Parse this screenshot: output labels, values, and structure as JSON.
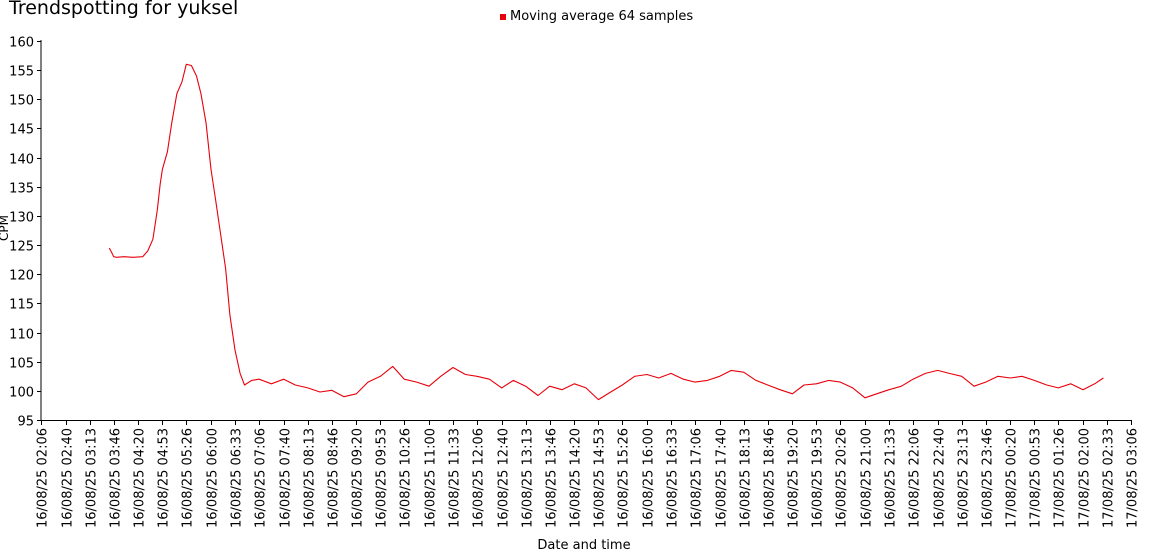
{
  "chart_data": {
    "type": "line",
    "title": "Trendspotting for yuksel",
    "xlabel": "Date and time",
    "ylabel": "CPM",
    "ylim": [
      95,
      160
    ],
    "yticks": [
      95,
      100,
      105,
      110,
      115,
      120,
      125,
      130,
      135,
      140,
      145,
      150,
      155,
      160
    ],
    "x_ticks": [
      "16/08/25 02:06",
      "16/08/25 02:40",
      "16/08/25 03:13",
      "16/08/25 03:46",
      "16/08/25 04:20",
      "16/08/25 04:53",
      "16/08/25 05:26",
      "16/08/25 06:00",
      "16/08/25 06:33",
      "16/08/25 07:06",
      "16/08/25 07:40",
      "16/08/25 08:13",
      "16/08/25 08:46",
      "16/08/25 09:20",
      "16/08/25 09:53",
      "16/08/25 10:26",
      "16/08/25 11:00",
      "16/08/25 11:33",
      "16/08/25 12:06",
      "16/08/25 12:40",
      "16/08/25 13:13",
      "16/08/25 13:46",
      "16/08/25 14:20",
      "16/08/25 14:53",
      "16/08/25 15:26",
      "16/08/25 16:00",
      "16/08/25 16:33",
      "16/08/25 17:06",
      "16/08/25 17:40",
      "16/08/25 18:13",
      "16/08/25 18:46",
      "16/08/25 19:20",
      "16/08/25 19:53",
      "16/08/25 20:26",
      "16/08/25 21:00",
      "16/08/25 21:33",
      "16/08/25 22:06",
      "16/08/25 22:40",
      "16/08/25 23:13",
      "16/08/25 23:46",
      "17/08/25 00:20",
      "17/08/25 00:53",
      "17/08/25 01:26",
      "17/08/25 02:00",
      "17/08/25 02:33",
      "17/08/25 03:06"
    ],
    "grid": false,
    "legend_position": "top",
    "series": [
      {
        "name": "Moving average 64 samples",
        "color": "#e8000b",
        "x": [
          "16/08/25 03:40",
          "16/08/25 03:43",
          "16/08/25 03:46",
          "16/08/25 03:50",
          "16/08/25 04:00",
          "16/08/25 04:13",
          "16/08/25 04:26",
          "16/08/25 04:33",
          "16/08/25 04:40",
          "16/08/25 04:46",
          "16/08/25 04:50",
          "16/08/25 04:53",
          "16/08/25 05:00",
          "16/08/25 05:06",
          "16/08/25 05:13",
          "16/08/25 05:20",
          "16/08/25 05:26",
          "16/08/25 05:33",
          "16/08/25 05:40",
          "16/08/25 05:46",
          "16/08/25 05:53",
          "16/08/25 06:00",
          "16/08/25 06:06",
          "16/08/25 06:13",
          "16/08/25 06:20",
          "16/08/25 06:26",
          "16/08/25 06:33",
          "16/08/25 06:40",
          "16/08/25 06:46",
          "16/08/25 06:56",
          "16/08/25 07:06",
          "16/08/25 07:23",
          "16/08/25 07:40",
          "16/08/25 07:56",
          "16/08/25 08:13",
          "16/08/25 08:30",
          "16/08/25 08:46",
          "16/08/25 09:03",
          "16/08/25 09:20",
          "16/08/25 09:36",
          "16/08/25 09:53",
          "16/08/25 10:10",
          "16/08/25 10:26",
          "16/08/25 10:43",
          "16/08/25 11:00",
          "16/08/25 11:16",
          "16/08/25 11:33",
          "16/08/25 11:50",
          "16/08/25 12:06",
          "16/08/25 12:23",
          "16/08/25 12:40",
          "16/08/25 12:56",
          "16/08/25 13:13",
          "16/08/25 13:30",
          "16/08/25 13:46",
          "16/08/25 14:03",
          "16/08/25 14:20",
          "16/08/25 14:36",
          "16/08/25 14:53",
          "16/08/25 15:10",
          "16/08/25 15:26",
          "16/08/25 15:43",
          "16/08/25 16:00",
          "16/08/25 16:16",
          "16/08/25 16:33",
          "16/08/25 16:50",
          "16/08/25 17:06",
          "16/08/25 17:23",
          "16/08/25 17:40",
          "16/08/25 17:56",
          "16/08/25 18:13",
          "16/08/25 18:30",
          "16/08/25 18:46",
          "16/08/25 19:03",
          "16/08/25 19:20",
          "16/08/25 19:36",
          "16/08/25 19:53",
          "16/08/25 20:10",
          "16/08/25 20:26",
          "16/08/25 20:43",
          "16/08/25 21:00",
          "16/08/25 21:16",
          "16/08/25 21:33",
          "16/08/25 21:50",
          "16/08/25 22:06",
          "16/08/25 22:23",
          "16/08/25 22:40",
          "16/08/25 22:56",
          "16/08/25 23:13",
          "16/08/25 23:30",
          "16/08/25 23:46",
          "17/08/25 00:03",
          "17/08/25 00:20",
          "17/08/25 00:36",
          "17/08/25 00:53",
          "17/08/25 01:10",
          "17/08/25 01:26",
          "17/08/25 01:43",
          "17/08/25 02:00",
          "17/08/25 02:16",
          "17/08/25 02:28"
        ],
        "y": [
          124.5,
          123.8,
          123.0,
          122.9,
          123.0,
          122.9,
          123.0,
          124.0,
          126.0,
          131.0,
          135.5,
          138.0,
          141.0,
          146.0,
          151.0,
          153.0,
          156.0,
          155.8,
          154.0,
          151.0,
          146.0,
          138.0,
          133.0,
          127.0,
          121.0,
          113.0,
          107.0,
          103.0,
          101.0,
          101.8,
          102.0,
          101.2,
          102.0,
          101.0,
          100.5,
          99.8,
          100.1,
          99.0,
          99.5,
          101.5,
          102.5,
          104.2,
          102.0,
          101.5,
          100.8,
          102.5,
          104.0,
          102.8,
          102.5,
          102.0,
          100.5,
          101.8,
          100.8,
          99.2,
          100.8,
          100.2,
          101.2,
          100.5,
          98.5,
          99.8,
          101.0,
          102.5,
          102.8,
          102.2,
          103.0,
          102.0,
          101.5,
          101.8,
          102.5,
          103.5,
          103.2,
          101.8,
          101.0,
          100.2,
          99.5,
          101.0,
          101.2,
          101.8,
          101.5,
          100.5,
          98.8,
          99.5,
          100.2,
          100.8,
          102.0,
          103.0,
          103.5,
          103.0,
          102.5,
          100.8,
          101.5,
          102.5,
          102.2,
          102.5,
          101.8,
          101.0,
          100.5,
          101.2,
          100.2,
          101.2,
          102.2
        ]
      }
    ]
  }
}
